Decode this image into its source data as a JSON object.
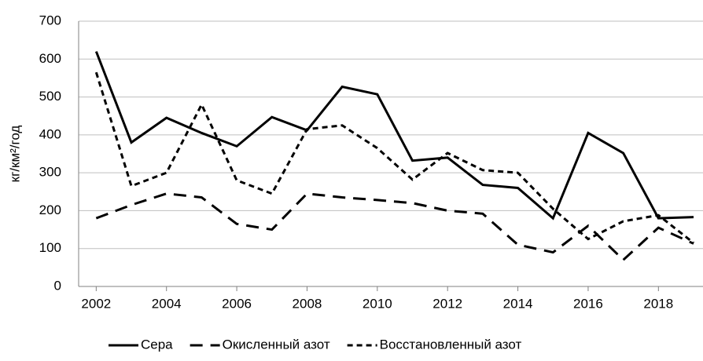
{
  "chart_data": {
    "type": "line",
    "y_label": "кг/км²/год",
    "x": [
      2002,
      2003,
      2004,
      2005,
      2006,
      2007,
      2008,
      2009,
      2010,
      2011,
      2012,
      2013,
      2014,
      2015,
      2016,
      2017,
      2018,
      2019
    ],
    "series": [
      {
        "name": "Сера",
        "color": "#000000",
        "dash": "solid",
        "values": [
          620,
          380,
          445,
          405,
          370,
          447,
          412,
          527,
          507,
          332,
          340,
          268,
          260,
          180,
          405,
          352,
          180,
          183
        ]
      },
      {
        "name": "Окисленный азот",
        "color": "#000000",
        "dash": "long",
        "values": [
          180,
          215,
          245,
          235,
          165,
          150,
          245,
          235,
          228,
          220,
          200,
          192,
          110,
          90,
          160,
          70,
          155,
          113
        ]
      },
      {
        "name": "Восстановленный азот",
        "color": "#000000",
        "dash": "short",
        "values": [
          565,
          265,
          300,
          480,
          280,
          245,
          415,
          425,
          365,
          282,
          352,
          307,
          300,
          205,
          125,
          172,
          188,
          115
        ]
      }
    ],
    "xlim": [
      2001.5,
      2019
    ],
    "xticks": [
      2002,
      2004,
      2006,
      2008,
      2010,
      2012,
      2014,
      2016,
      2018
    ],
    "ylim": [
      0,
      700
    ],
    "yticks": [
      0,
      100,
      200,
      300,
      400,
      500,
      600,
      700
    ],
    "grid": true,
    "legend": "bottom"
  }
}
